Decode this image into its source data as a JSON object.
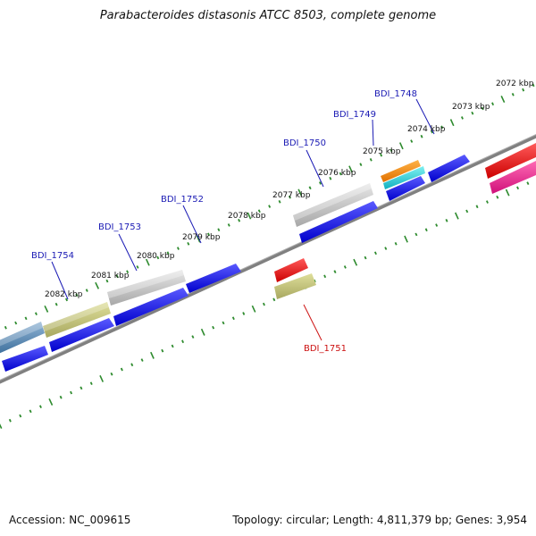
{
  "title": "Parabacteroides distasonis ATCC 8503, complete genome",
  "footer": {
    "accession": "Accession: NC_009615",
    "stats": "Topology: circular; Length: 4,811,379 bp; Genes: 3,954"
  },
  "colors": {
    "forward_gene": "#1010e8",
    "label_blue": "#1a1ab4",
    "label_red": "#cc1010",
    "backbone": "#808080",
    "ruler_dots": "#2e8b2e"
  },
  "ruler_labels": [
    "2072 kbp",
    "2073 kbp",
    "2074 kbp",
    "2075 kbp",
    "2076 kbp",
    "2077 kbp",
    "2078 kbp",
    "2079 kbp",
    "2080 kbp",
    "2081 kbp",
    "2082 kbp"
  ],
  "gene_labels": [
    {
      "name": "BDI_1748",
      "color": "blue"
    },
    {
      "name": "BDI_1749",
      "color": "blue"
    },
    {
      "name": "BDI_1750",
      "color": "blue"
    },
    {
      "name": "BDI_1752",
      "color": "blue"
    },
    {
      "name": "BDI_1753",
      "color": "blue"
    },
    {
      "name": "BDI_1754",
      "color": "blue"
    },
    {
      "name": "BDI_1751",
      "color": "red"
    }
  ]
}
